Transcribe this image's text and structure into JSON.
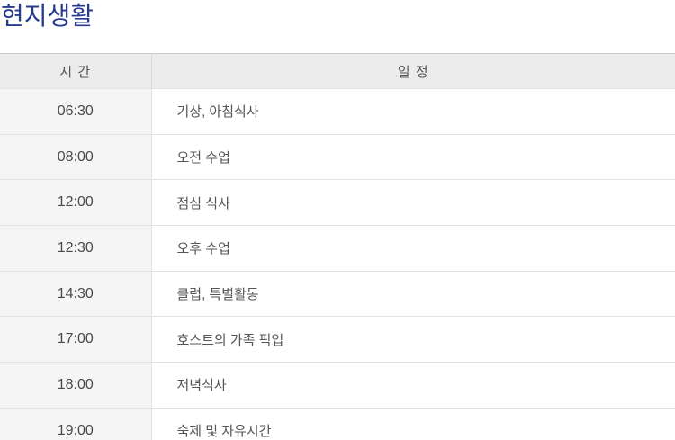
{
  "page": {
    "title": "현지생활"
  },
  "colors": {
    "title_text": "#283b8f",
    "header_background": "#ececec",
    "time_column_background": "#f5f5f5",
    "row_border": "#e3e3e3",
    "outer_border": "#c9c9c9",
    "body_text": "#555555"
  },
  "table": {
    "headers": {
      "time": "시 간",
      "event": "일 정"
    },
    "rows": [
      {
        "time": "06:30",
        "event": "기상, 아침식사"
      },
      {
        "time": "08:00",
        "event": "오전 수업"
      },
      {
        "time": "12:00",
        "event": "점심 식사"
      },
      {
        "time": "12:30",
        "event": "오후 수업"
      },
      {
        "time": "14:30",
        "event": "클럽, 특별활동"
      },
      {
        "time": "17:00",
        "event_underlined": "호스트의",
        "event": " 가족 픽업"
      },
      {
        "time": "18:00",
        "event": "저녁식사"
      },
      {
        "time": "19:00",
        "event": "숙제 및 자유시간"
      }
    ]
  }
}
